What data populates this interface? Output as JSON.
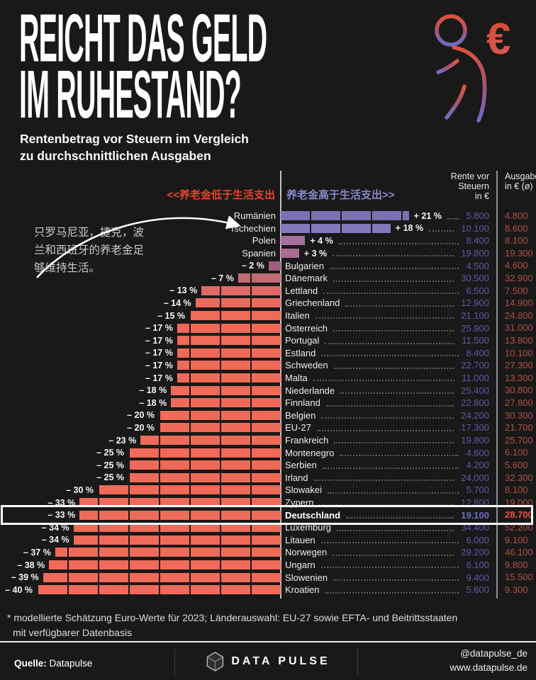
{
  "header": {
    "title_line1": "REICHT DAS GELD",
    "title_line2": "IM RUHESTAND?",
    "subtitle_line1": "Rentenbetrag vor Steuern im Vergleich",
    "subtitle_line2": "zu durchschnittlichen Ausgaben"
  },
  "annotations": {
    "left_note": "只罗马尼亚，捷克，波兰和西班牙的养老金足够维持生活。",
    "axis_left_label": "<<养老金低于生活支出",
    "axis_right_label": "养老金高于生活支出>>"
  },
  "columns": {
    "rente_header": [
      "Rente vor",
      "Steuern",
      "in €"
    ],
    "ausgaben_header": [
      "Ausgaben",
      "in € (ø)"
    ]
  },
  "colors": {
    "background": "#191919",
    "negative_accent": "#f06a59",
    "positive_accent": "#7a70b4",
    "axis_label_left": "#e8432a",
    "axis_label_right": "#8c86cf",
    "rente_value": "#5d59a6",
    "ausgaben_value": "#b25045",
    "highlight_rente": "#716cc5",
    "highlight_ausgaben": "#ee5140"
  },
  "chart_data": {
    "type": "bar",
    "orientation": "horizontal-diverging",
    "unit": "%",
    "bar_segment_interval_pct": 5,
    "x_range": [
      -40,
      21
    ],
    "value_columns": [
      "Rente vor Steuern in €",
      "Ausgaben in € (ø)"
    ],
    "rows": [
      {
        "country": "Rumänien",
        "pct": 21,
        "pct_label": "+ 21 %",
        "rente": "5.800",
        "ausgaben": "4.800",
        "color": "#7a70b4",
        "highlight": false
      },
      {
        "country": "Tschechien",
        "pct": 18,
        "pct_label": "+ 18 %",
        "rente": "10.100",
        "ausgaben": "8.600",
        "color": "#8478bb",
        "highlight": false
      },
      {
        "country": "Polen",
        "pct": 4,
        "pct_label": "+ 4 %",
        "rente": "8.400",
        "ausgaben": "8.100",
        "color": "#a7709f",
        "highlight": false
      },
      {
        "country": "Spanien",
        "pct": 3,
        "pct_label": "+ 3 %",
        "rente": "19.800",
        "ausgaben": "19.300",
        "color": "#ab6b93",
        "highlight": false
      },
      {
        "country": "Bulgarien",
        "pct": -2,
        "pct_label": "– 2 %",
        "rente": "4.500",
        "ausgaben": "4.600",
        "color": "#a05e7e",
        "highlight": false
      },
      {
        "country": "Dänemark",
        "pct": -7,
        "pct_label": "– 7 %",
        "rente": "30.500",
        "ausgaben": "32.900",
        "color": "#c26a75",
        "highlight": false
      },
      {
        "country": "Lettland",
        "pct": -13,
        "pct_label": "– 13 %",
        "rente": "6.500",
        "ausgaben": "7.500",
        "color": "#e06a63",
        "highlight": false
      },
      {
        "country": "Griechenland",
        "pct": -14,
        "pct_label": "– 14 %",
        "rente": "12.900",
        "ausgaben": "14.900",
        "color": "#ec6a5d",
        "highlight": false
      },
      {
        "country": "Italien",
        "pct": -15,
        "pct_label": "– 15 %",
        "rente": "21.100",
        "ausgaben": "24.800",
        "color": "#f06a59",
        "highlight": false
      },
      {
        "country": "Österreich",
        "pct": -17,
        "pct_label": "– 17 %",
        "rente": "25.900",
        "ausgaben": "31.000",
        "color": "#f06a59",
        "highlight": false
      },
      {
        "country": "Portugal",
        "pct": -17,
        "pct_label": "– 17 %",
        "rente": "11.500",
        "ausgaben": "13.800",
        "color": "#f06a59",
        "highlight": false
      },
      {
        "country": "Estland",
        "pct": -17,
        "pct_label": "– 17 %",
        "rente": "8.400",
        "ausgaben": "10.100",
        "color": "#f06a59",
        "highlight": false
      },
      {
        "country": "Schweden",
        "pct": -17,
        "pct_label": "– 17 %",
        "rente": "22.700",
        "ausgaben": "27.300",
        "color": "#f06a59",
        "highlight": false
      },
      {
        "country": "Malta",
        "pct": -17,
        "pct_label": "– 17 %",
        "rente": "11.000",
        "ausgaben": "13.300",
        "color": "#f06a59",
        "highlight": false
      },
      {
        "country": "Niederlande",
        "pct": -18,
        "pct_label": "– 18 %",
        "rente": "25.400",
        "ausgaben": "30.800",
        "color": "#f06a59",
        "highlight": false
      },
      {
        "country": "Finnland",
        "pct": -18,
        "pct_label": "– 18 %",
        "rente": "22.800",
        "ausgaben": "27.800",
        "color": "#f06a59",
        "highlight": false
      },
      {
        "country": "Belgien",
        "pct": -20,
        "pct_label": "– 20 %",
        "rente": "24.200",
        "ausgaben": "30.300",
        "color": "#f06a59",
        "highlight": false
      },
      {
        "country": "EU-27",
        "pct": -20,
        "pct_label": "– 20 %",
        "rente": "17.300",
        "ausgaben": "21.700",
        "color": "#f06a59",
        "highlight": false
      },
      {
        "country": "Frankreich",
        "pct": -23,
        "pct_label": "– 23 %",
        "rente": "19.800",
        "ausgaben": "25.700",
        "color": "#f06a59",
        "highlight": false
      },
      {
        "country": "Montenegro",
        "pct": -25,
        "pct_label": "– 25 %",
        "rente": "4.600",
        "ausgaben": "6.100",
        "color": "#f06a59",
        "highlight": false
      },
      {
        "country": "Serbien",
        "pct": -25,
        "pct_label": "– 25 %",
        "rente": "4.200",
        "ausgaben": "5.600",
        "color": "#f06a59",
        "highlight": false
      },
      {
        "country": "Irland",
        "pct": -25,
        "pct_label": "– 25 %",
        "rente": "24.000",
        "ausgaben": "32.300",
        "color": "#f06a59",
        "highlight": false
      },
      {
        "country": "Slowakei",
        "pct": -30,
        "pct_label": "– 30 %",
        "rente": "5.700",
        "ausgaben": "8.100",
        "color": "#f06a59",
        "highlight": false
      },
      {
        "country": "Zypern",
        "pct": -33,
        "pct_label": "– 33 %",
        "rente": "12.800",
        "ausgaben": "19.000",
        "color": "#f06a59",
        "highlight": false
      },
      {
        "country": "Deutschland",
        "pct": -33,
        "pct_label": "– 33 %",
        "rente": "19.100",
        "ausgaben": "28.700",
        "color": "#f06a59",
        "highlight": true
      },
      {
        "country": "Luxemburg",
        "pct": -34,
        "pct_label": "– 34 %",
        "rente": "34.400",
        "ausgaben": "52.200",
        "color": "#f06a59",
        "highlight": false
      },
      {
        "country": "Litauen",
        "pct": -34,
        "pct_label": "– 34 %",
        "rente": "6.000",
        "ausgaben": "9.100",
        "color": "#f06a59",
        "highlight": false
      },
      {
        "country": "Norwegen",
        "pct": -37,
        "pct_label": "– 37 %",
        "rente": "29.200",
        "ausgaben": "46.100",
        "color": "#f06a59",
        "highlight": false
      },
      {
        "country": "Ungarn",
        "pct": -38,
        "pct_label": "– 38 %",
        "rente": "6.100",
        "ausgaben": "9.800",
        "color": "#f06a59",
        "highlight": false
      },
      {
        "country": "Slowenien",
        "pct": -39,
        "pct_label": "– 39 %",
        "rente": "9.400",
        "ausgaben": "15.500",
        "color": "#f06a59",
        "highlight": false
      },
      {
        "country": "Kroatien",
        "pct": -40,
        "pct_label": "– 40 %",
        "rente": "5.600",
        "ausgaben": "9.300",
        "color": "#f06a59",
        "highlight": false
      }
    ]
  },
  "footnote_line1": "* modellierte Schätzung Euro-Werte für 2023; Länderauswahl: EU-27 sowie EFTA- und Beitrittsstaaten",
  "footnote_line2": "mit verfügbarer Datenbasis",
  "footer": {
    "source_label": "Quelle:",
    "source_value": " Datapulse",
    "brand": "DATA PULSE",
    "handle": "@datapulse_de",
    "website": "www.datapulse.de"
  }
}
